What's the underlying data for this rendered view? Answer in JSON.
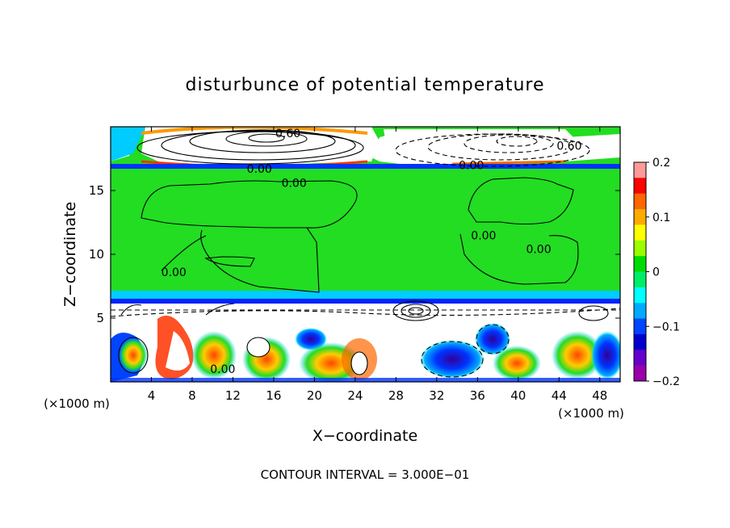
{
  "chart_data": {
    "type": "heatmap",
    "title": "disturbunce of potential temperature",
    "xlabel": "X−coordinate",
    "ylabel": "Z−coordinate",
    "x_unit_left": "(×1000 m)",
    "x_unit_right": "(×1000 m)",
    "xlim": [
      0,
      50
    ],
    "ylim": [
      0,
      20
    ],
    "x_ticks": [
      4,
      8,
      12,
      16,
      20,
      24,
      28,
      32,
      36,
      40,
      44,
      48
    ],
    "y_ticks": [
      5,
      10,
      15
    ],
    "colorbar": {
      "range": [
        -0.2,
        0.2
      ],
      "tick_values": [
        0.2,
        0.1,
        0,
        -0.1,
        -0.2
      ],
      "tick_labels": [
        "0.2",
        "0.1",
        "0",
        "−0.1",
        "−0.2"
      ],
      "colors": [
        "#ff9a9a",
        "#ff0000",
        "#ff6600",
        "#ffaa00",
        "#ffff00",
        "#99ff00",
        "#00dd00",
        "#00ee66",
        "#00ffff",
        "#00aaff",
        "#0044ff",
        "#0000cc",
        "#6600cc",
        "#9900aa"
      ]
    },
    "contour_labels": [
      {
        "text": "0.60",
        "x": 17.4,
        "y": 19.5
      },
      {
        "text": "0.60",
        "x": 45.0,
        "y": 18.5
      },
      {
        "text": "0.00",
        "x": 14.6,
        "y": 16.7
      },
      {
        "text": "0.00",
        "x": 35.4,
        "y": 17.0
      },
      {
        "text": "0.00",
        "x": 18.0,
        "y": 15.6
      },
      {
        "text": "0.00",
        "x": 36.6,
        "y": 11.5
      },
      {
        "text": "0.00",
        "x": 42.0,
        "y": 10.4
      },
      {
        "text": "0.00",
        "x": 6.2,
        "y": 8.6
      },
      {
        "text": "0.00",
        "x": 11.0,
        "y": 1.0
      }
    ],
    "contour_interval_text": "CONTOUR INTERVAL = 3.000E−01"
  }
}
